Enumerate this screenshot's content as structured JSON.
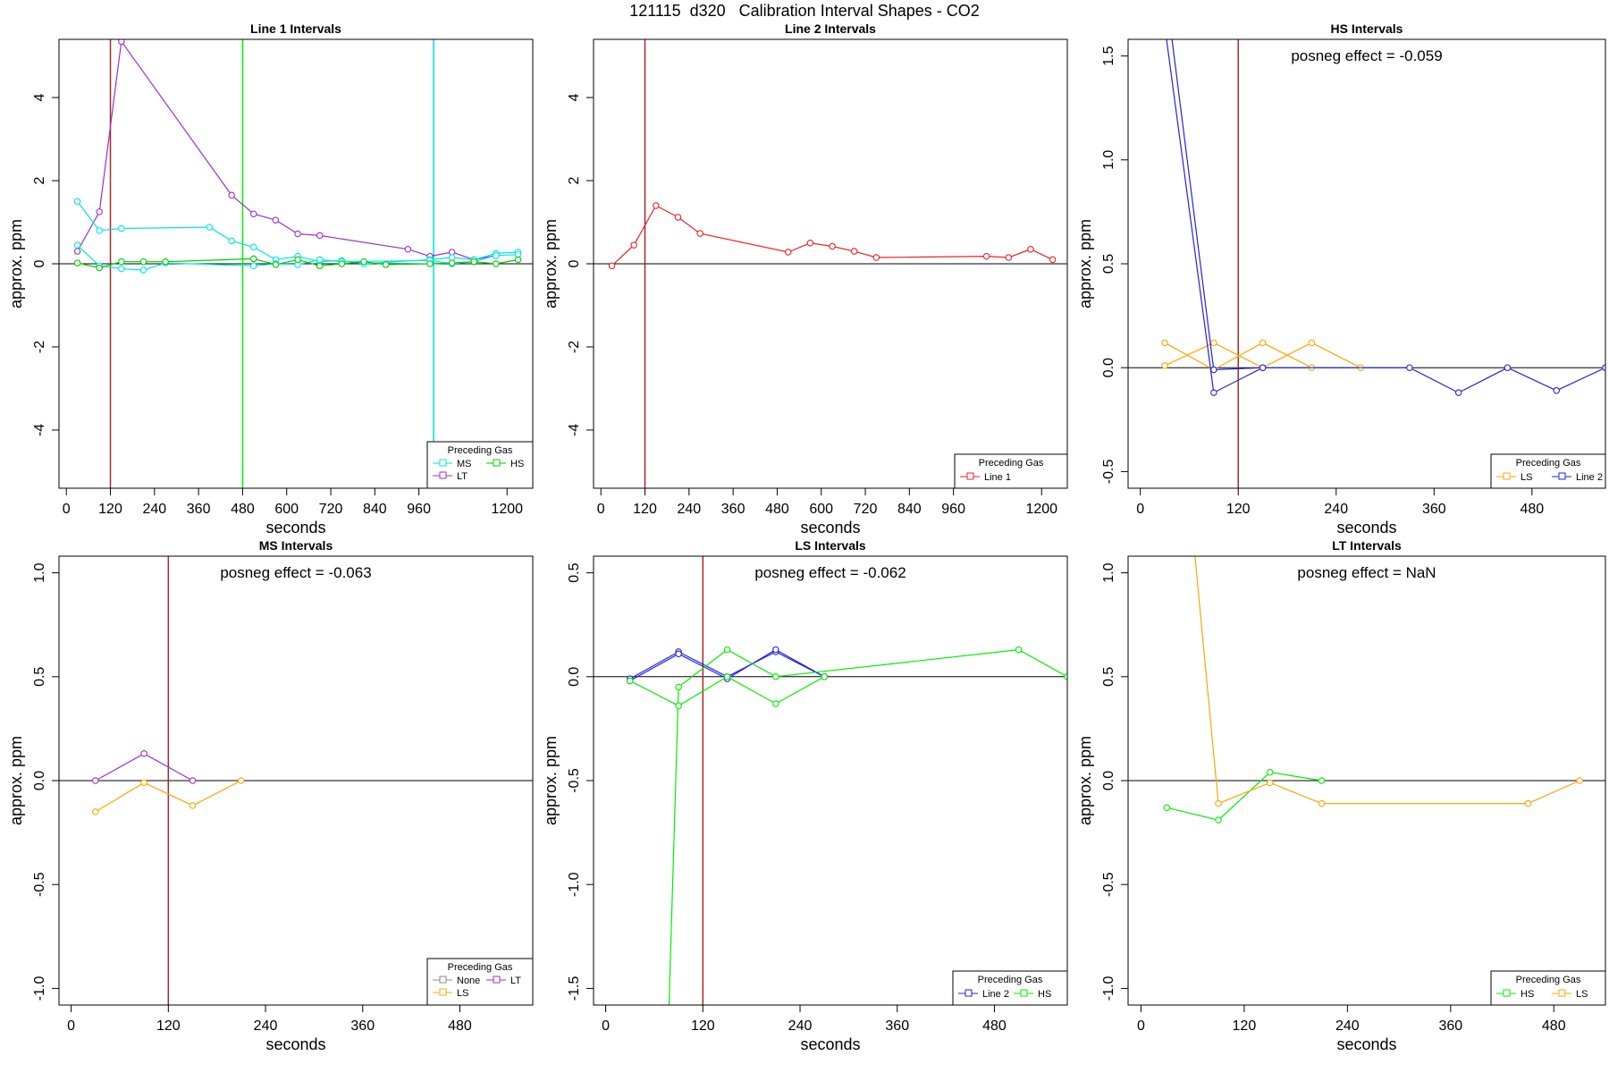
{
  "figure": {
    "title": "121115  d320   Calibration Interval Shapes - CO2"
  },
  "chart_data": [
    {
      "type": "line",
      "title": "Line 1 Intervals",
      "xlabel": "seconds",
      "ylabel": "approx. ppm",
      "xlim": [
        -20,
        1270
      ],
      "ylim": [
        -5.4,
        5.4
      ],
      "xticks": [
        0,
        120,
        240,
        360,
        480,
        600,
        720,
        840,
        960,
        1200
      ],
      "yticks": [
        -4,
        -2,
        0,
        2,
        4
      ],
      "hline": 0,
      "vlines": [
        {
          "x": 120,
          "color": "#a52a2a"
        },
        {
          "x": 480,
          "color": "#00ee00"
        },
        {
          "x": 1000,
          "color": "#00dddd"
        }
      ],
      "annotation": "",
      "legend": {
        "title": "Preceding Gas",
        "position": "bottom-right",
        "entries": [
          {
            "label": "MS",
            "color": "#00e5e5"
          },
          {
            "label": "HS",
            "color": "#00cc00"
          },
          {
            "label": "LT",
            "color": "#9932cc"
          }
        ]
      },
      "series": [
        {
          "name": "LT",
          "color": "#9932cc",
          "points": [
            [
              30,
              0.3
            ],
            [
              90,
              1.25
            ],
            [
              150,
              5.35
            ],
            [
              450,
              1.65
            ],
            [
              510,
              1.2
            ],
            [
              570,
              1.05
            ],
            [
              630,
              0.72
            ],
            [
              690,
              0.68
            ],
            [
              930,
              0.35
            ],
            [
              990,
              0.18
            ],
            [
              1050,
              0.28
            ],
            [
              1110,
              0.1
            ],
            [
              1170,
              0.2
            ]
          ]
        },
        {
          "name": "MS",
          "color": "#00e5e5",
          "points": [
            [
              30,
              1.5
            ],
            [
              90,
              0.8
            ],
            [
              150,
              0.85
            ],
            [
              390,
              0.88
            ],
            [
              450,
              0.55
            ],
            [
              510,
              0.4
            ],
            [
              570,
              0.1
            ],
            [
              630,
              0.18
            ],
            [
              690,
              0.05
            ],
            [
              750,
              0.08
            ],
            [
              810,
              0.0
            ],
            [
              990,
              0.1
            ],
            [
              1050,
              0.15
            ],
            [
              1110,
              0.1
            ],
            [
              1170,
              0.25
            ],
            [
              1230,
              0.28
            ]
          ]
        },
        {
          "name": "MS",
          "color": "#00e5e5",
          "points": [
            [
              30,
              0.45
            ],
            [
              90,
              -0.05
            ],
            [
              150,
              -0.12
            ],
            [
              210,
              -0.15
            ],
            [
              270,
              0.02
            ],
            [
              510,
              -0.05
            ],
            [
              570,
              0.0
            ],
            [
              630,
              -0.02
            ],
            [
              690,
              0.1
            ],
            [
              750,
              0.05
            ],
            [
              990,
              0.08
            ],
            [
              1050,
              0.0
            ],
            [
              1110,
              0.05
            ],
            [
              1170,
              0.2
            ],
            [
              1230,
              0.22
            ]
          ]
        },
        {
          "name": "HS",
          "color": "#00cc00",
          "points": [
            [
              30,
              0.02
            ],
            [
              90,
              -0.1
            ],
            [
              150,
              0.05
            ],
            [
              210,
              0.05
            ],
            [
              270,
              0.05
            ],
            [
              510,
              0.12
            ],
            [
              570,
              -0.02
            ],
            [
              630,
              0.1
            ],
            [
              690,
              -0.05
            ],
            [
              750,
              0.0
            ],
            [
              810,
              0.05
            ],
            [
              870,
              -0.02
            ],
            [
              990,
              0.0
            ],
            [
              1050,
              0.02
            ],
            [
              1110,
              0.05
            ],
            [
              1170,
              0.0
            ],
            [
              1230,
              0.1
            ]
          ]
        }
      ]
    },
    {
      "type": "line",
      "title": "Line 2 Intervals",
      "xlabel": "seconds",
      "ylabel": "approx. ppm",
      "xlim": [
        -20,
        1270
      ],
      "ylim": [
        -5.4,
        5.4
      ],
      "xticks": [
        0,
        120,
        240,
        360,
        480,
        600,
        720,
        840,
        960,
        1200
      ],
      "yticks": [
        -4,
        -2,
        0,
        2,
        4
      ],
      "hline": 0,
      "vlines": [
        {
          "x": 120,
          "color": "#a52a2a"
        }
      ],
      "annotation": "",
      "legend": {
        "title": "Preceding Gas",
        "position": "bottom-right",
        "entries": [
          {
            "label": "Line 1",
            "color": "#ee2222"
          }
        ]
      },
      "series": [
        {
          "name": "Line 1",
          "color": "#ee2222",
          "points": [
            [
              30,
              -0.05
            ],
            [
              90,
              0.45
            ],
            [
              150,
              1.4
            ],
            [
              210,
              1.12
            ],
            [
              270,
              0.73
            ],
            [
              510,
              0.28
            ],
            [
              570,
              0.5
            ],
            [
              630,
              0.42
            ],
            [
              690,
              0.3
            ],
            [
              750,
              0.15
            ],
            [
              1050,
              0.18
            ],
            [
              1110,
              0.15
            ],
            [
              1170,
              0.35
            ],
            [
              1230,
              0.1
            ]
          ]
        }
      ]
    },
    {
      "type": "line",
      "title": "HS Intervals",
      "xlabel": "seconds",
      "ylabel": "approx. ppm",
      "xlim": [
        -15,
        570
      ],
      "ylim": [
        -0.58,
        1.58
      ],
      "xticks": [
        0,
        120,
        240,
        360,
        480
      ],
      "yticks": [
        -0.5,
        0.0,
        0.5,
        1.0,
        1.5
      ],
      "hline": 0,
      "vlines": [
        {
          "x": 120,
          "color": "#a52a2a"
        }
      ],
      "annotation": "posneg effect = -0.059",
      "legend": {
        "title": "Preceding Gas",
        "position": "bottom-right",
        "entries": [
          {
            "label": "LS",
            "color": "#ffa500"
          },
          {
            "label": "Line 2",
            "color": "#2222dd"
          }
        ]
      },
      "series": [
        {
          "name": "LS",
          "color": "#ffa500",
          "points": [
            [
              30,
              0.12
            ],
            [
              90,
              -0.01
            ],
            [
              150,
              0.12
            ],
            [
              210,
              0.0
            ]
          ]
        },
        {
          "name": "LS",
          "color": "#ffa500",
          "points": [
            [
              30,
              0.01
            ],
            [
              90,
              0.12
            ],
            [
              150,
              0.0
            ],
            [
              210,
              0.12
            ],
            [
              270,
              0.0
            ]
          ]
        },
        {
          "name": "Line 2",
          "color": "#2222dd",
          "points": [
            [
              28,
              1.7
            ],
            [
              90,
              -0.12
            ],
            [
              150,
              0.0
            ],
            [
              330,
              0.0
            ],
            [
              390,
              -0.12
            ],
            [
              450,
              0.0
            ],
            [
              510,
              -0.11
            ],
            [
              570,
              0.0
            ]
          ]
        },
        {
          "name": "Line 2",
          "color": "#2222dd",
          "points": [
            [
              35,
              1.7
            ],
            [
              90,
              -0.01
            ],
            [
              150,
              0.0
            ]
          ]
        }
      ]
    },
    {
      "type": "line",
      "title": "MS Intervals",
      "xlabel": "seconds",
      "ylabel": "approx. ppm",
      "xlim": [
        -15,
        570
      ],
      "ylim": [
        -1.08,
        1.08
      ],
      "xticks": [
        0,
        120,
        240,
        360,
        480
      ],
      "yticks": [
        -1.0,
        -0.5,
        0.0,
        0.5,
        1.0
      ],
      "hline": 0,
      "vlines": [
        {
          "x": 120,
          "color": "#a52a2a"
        }
      ],
      "annotation": "posneg effect = -0.063",
      "legend": {
        "title": "Preceding Gas",
        "position": "bottom-right",
        "entries": [
          {
            "label": "None",
            "color": "#888888"
          },
          {
            "label": "LT",
            "color": "#9932cc"
          },
          {
            "label": "LS",
            "color": "#ffa500"
          }
        ]
      },
      "series": [
        {
          "name": "LT",
          "color": "#9932cc",
          "points": [
            [
              30,
              0.0
            ],
            [
              90,
              0.13
            ],
            [
              150,
              0.0
            ]
          ]
        },
        {
          "name": "LS",
          "color": "#ffa500",
          "points": [
            [
              30,
              -0.15
            ],
            [
              90,
              -0.01
            ],
            [
              150,
              -0.12
            ],
            [
              210,
              0.0
            ]
          ]
        }
      ]
    },
    {
      "type": "line",
      "title": "LS Intervals",
      "xlabel": "seconds",
      "ylabel": "approx. ppm",
      "xlim": [
        -15,
        570
      ],
      "ylim": [
        -1.58,
        0.58
      ],
      "xticks": [
        0,
        120,
        240,
        360,
        480
      ],
      "yticks": [
        -1.5,
        -1.0,
        -0.5,
        0.0,
        0.5
      ],
      "hline": 0,
      "vlines": [
        {
          "x": 120,
          "color": "#a52a2a"
        }
      ],
      "annotation": "posneg effect = -0.062",
      "legend": {
        "title": "Preceding Gas",
        "position": "bottom-right",
        "entries": [
          {
            "label": "Line 2",
            "color": "#2222dd"
          },
          {
            "label": "HS",
            "color": "#00ee00"
          }
        ]
      },
      "series": [
        {
          "name": "Line 2",
          "color": "#2222dd",
          "points": [
            [
              30,
              -0.01
            ],
            [
              90,
              0.12
            ],
            [
              150,
              0.0
            ],
            [
              210,
              0.12
            ],
            [
              270,
              0.0
            ]
          ]
        },
        {
          "name": "Line 2",
          "color": "#2222dd",
          "points": [
            [
              30,
              -0.02
            ],
            [
              90,
              0.11
            ],
            [
              150,
              -0.01
            ],
            [
              210,
              0.13
            ],
            [
              270,
              0.0
            ]
          ]
        },
        {
          "name": "HS",
          "color": "#00ee00",
          "points": [
            [
              78,
              -1.6
            ],
            [
              90,
              -0.05
            ],
            [
              150,
              0.13
            ],
            [
              210,
              0.0
            ],
            [
              510,
              0.13
            ],
            [
              570,
              0.0
            ]
          ]
        },
        {
          "name": "HS",
          "color": "#00ee00",
          "points": [
            [
              30,
              -0.02
            ],
            [
              90,
              -0.14
            ],
            [
              150,
              0.0
            ],
            [
              210,
              -0.13
            ],
            [
              270,
              0.0
            ]
          ]
        }
      ]
    },
    {
      "type": "line",
      "title": "LT Intervals",
      "xlabel": "seconds",
      "ylabel": "approx. ppm",
      "xlim": [
        -15,
        540
      ],
      "ylim": [
        -1.08,
        1.08
      ],
      "xticks": [
        0,
        120,
        240,
        360,
        480
      ],
      "yticks": [
        -1.0,
        -0.5,
        0.0,
        0.5,
        1.0
      ],
      "hline": 0,
      "vlines": [],
      "annotation": "posneg effect = NaN",
      "legend": {
        "title": "Preceding Gas",
        "position": "bottom-right",
        "entries": [
          {
            "label": "HS",
            "color": "#00ee00"
          },
          {
            "label": "LS",
            "color": "#ffa500"
          }
        ]
      },
      "series": [
        {
          "name": "HS",
          "color": "#00ee00",
          "points": [
            [
              30,
              -0.13
            ],
            [
              90,
              -0.19
            ],
            [
              150,
              0.04
            ],
            [
              210,
              0.0
            ]
          ]
        },
        {
          "name": "LS",
          "color": "#ffa500",
          "points": [
            [
              60,
              1.2
            ],
            [
              90,
              -0.11
            ],
            [
              150,
              -0.01
            ],
            [
              210,
              -0.11
            ],
            [
              450,
              -0.11
            ],
            [
              510,
              0.0
            ]
          ]
        }
      ]
    }
  ]
}
